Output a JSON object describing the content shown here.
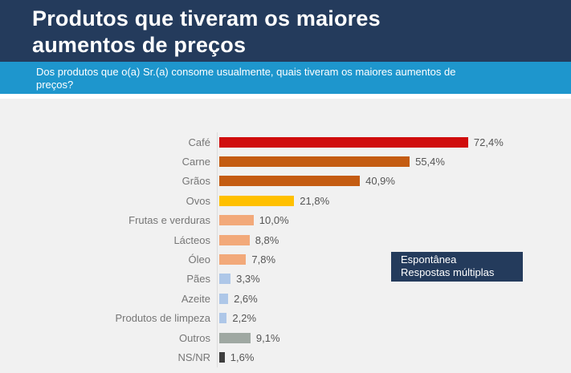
{
  "header": {
    "title_lines": [
      "Produtos que tiveram os maiores",
      "aumentos de preços"
    ],
    "subtitle_lines": [
      "Dos produtos que o(a) Sr.(a) consome usualmente, quais tiveram os maiores aumentos de",
      "preços?"
    ]
  },
  "legend_box": {
    "lines": [
      "Espontânea",
      "Respostas múltiplas"
    ]
  },
  "colors": {
    "navy": "#243B5C",
    "band_blue": "#1E96CD",
    "page_background": "#F1F1F1",
    "axis_line": "#DCDCDC",
    "category_label": "#767676",
    "value_label": "#565656"
  },
  "chart_data": {
    "type": "bar",
    "orientation": "horizontal",
    "title": "Produtos que tiveram os maiores aumentos de preços",
    "subtitle": "Dos produtos que o(a) Sr.(a) consome usualmente, quais tiveram os maiores aumentos de preços?",
    "categories": [
      "Café",
      "Carne",
      "Grãos",
      "Ovos",
      "Frutas e verduras",
      "Lácteos",
      "Óleo",
      "Pães",
      "Azeite",
      "Produtos de limpeza",
      "Outros",
      "NS/NR"
    ],
    "values": [
      72.4,
      55.4,
      40.9,
      21.8,
      10.0,
      8.8,
      7.8,
      3.3,
      2.6,
      2.2,
      9.1,
      1.6
    ],
    "value_labels": [
      "72,4%",
      "55,4%",
      "40,9%",
      "21,8%",
      "10,0%",
      "8,8%",
      "7,8%",
      "3,3%",
      "2,6%",
      "2,2%",
      "9,1%",
      "1,6%"
    ],
    "bar_colors": [
      "#D00D0D",
      "#C45C12",
      "#C45C12",
      "#FFC000",
      "#F2A97A",
      "#F2A97A",
      "#F2A97A",
      "#AEC7E8",
      "#AEC7E8",
      "#AEC7E8",
      "#9FA8A2",
      "#3E3E3E"
    ],
    "unit": "%",
    "xlim": [
      0,
      80
    ],
    "grid": false,
    "legend_position": "right-middle",
    "annotation": "Espontânea Respostas múltiplas"
  }
}
